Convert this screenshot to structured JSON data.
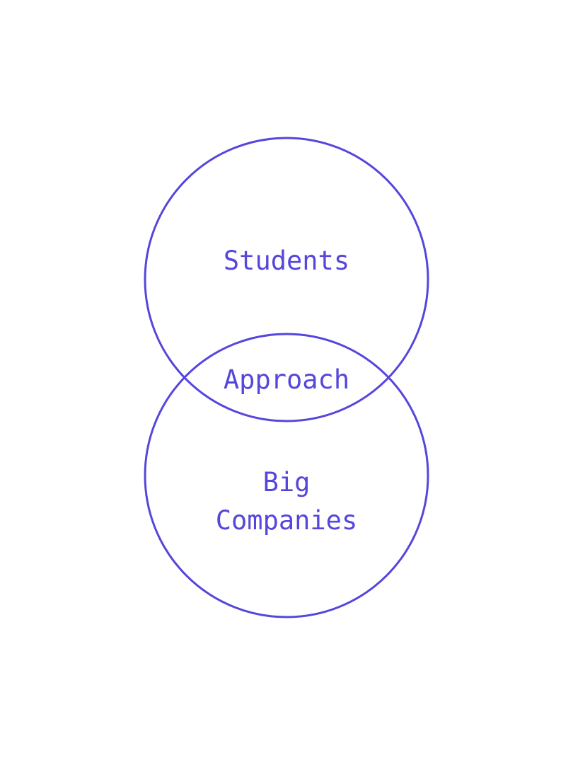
{
  "colors": {
    "accent": "#5546dc",
    "background": "#ffffff"
  },
  "diagram": {
    "type": "venn",
    "sets": [
      {
        "label": "Students"
      },
      {
        "label": "Big\nCompanies"
      }
    ],
    "intersection_label": "Approach"
  }
}
